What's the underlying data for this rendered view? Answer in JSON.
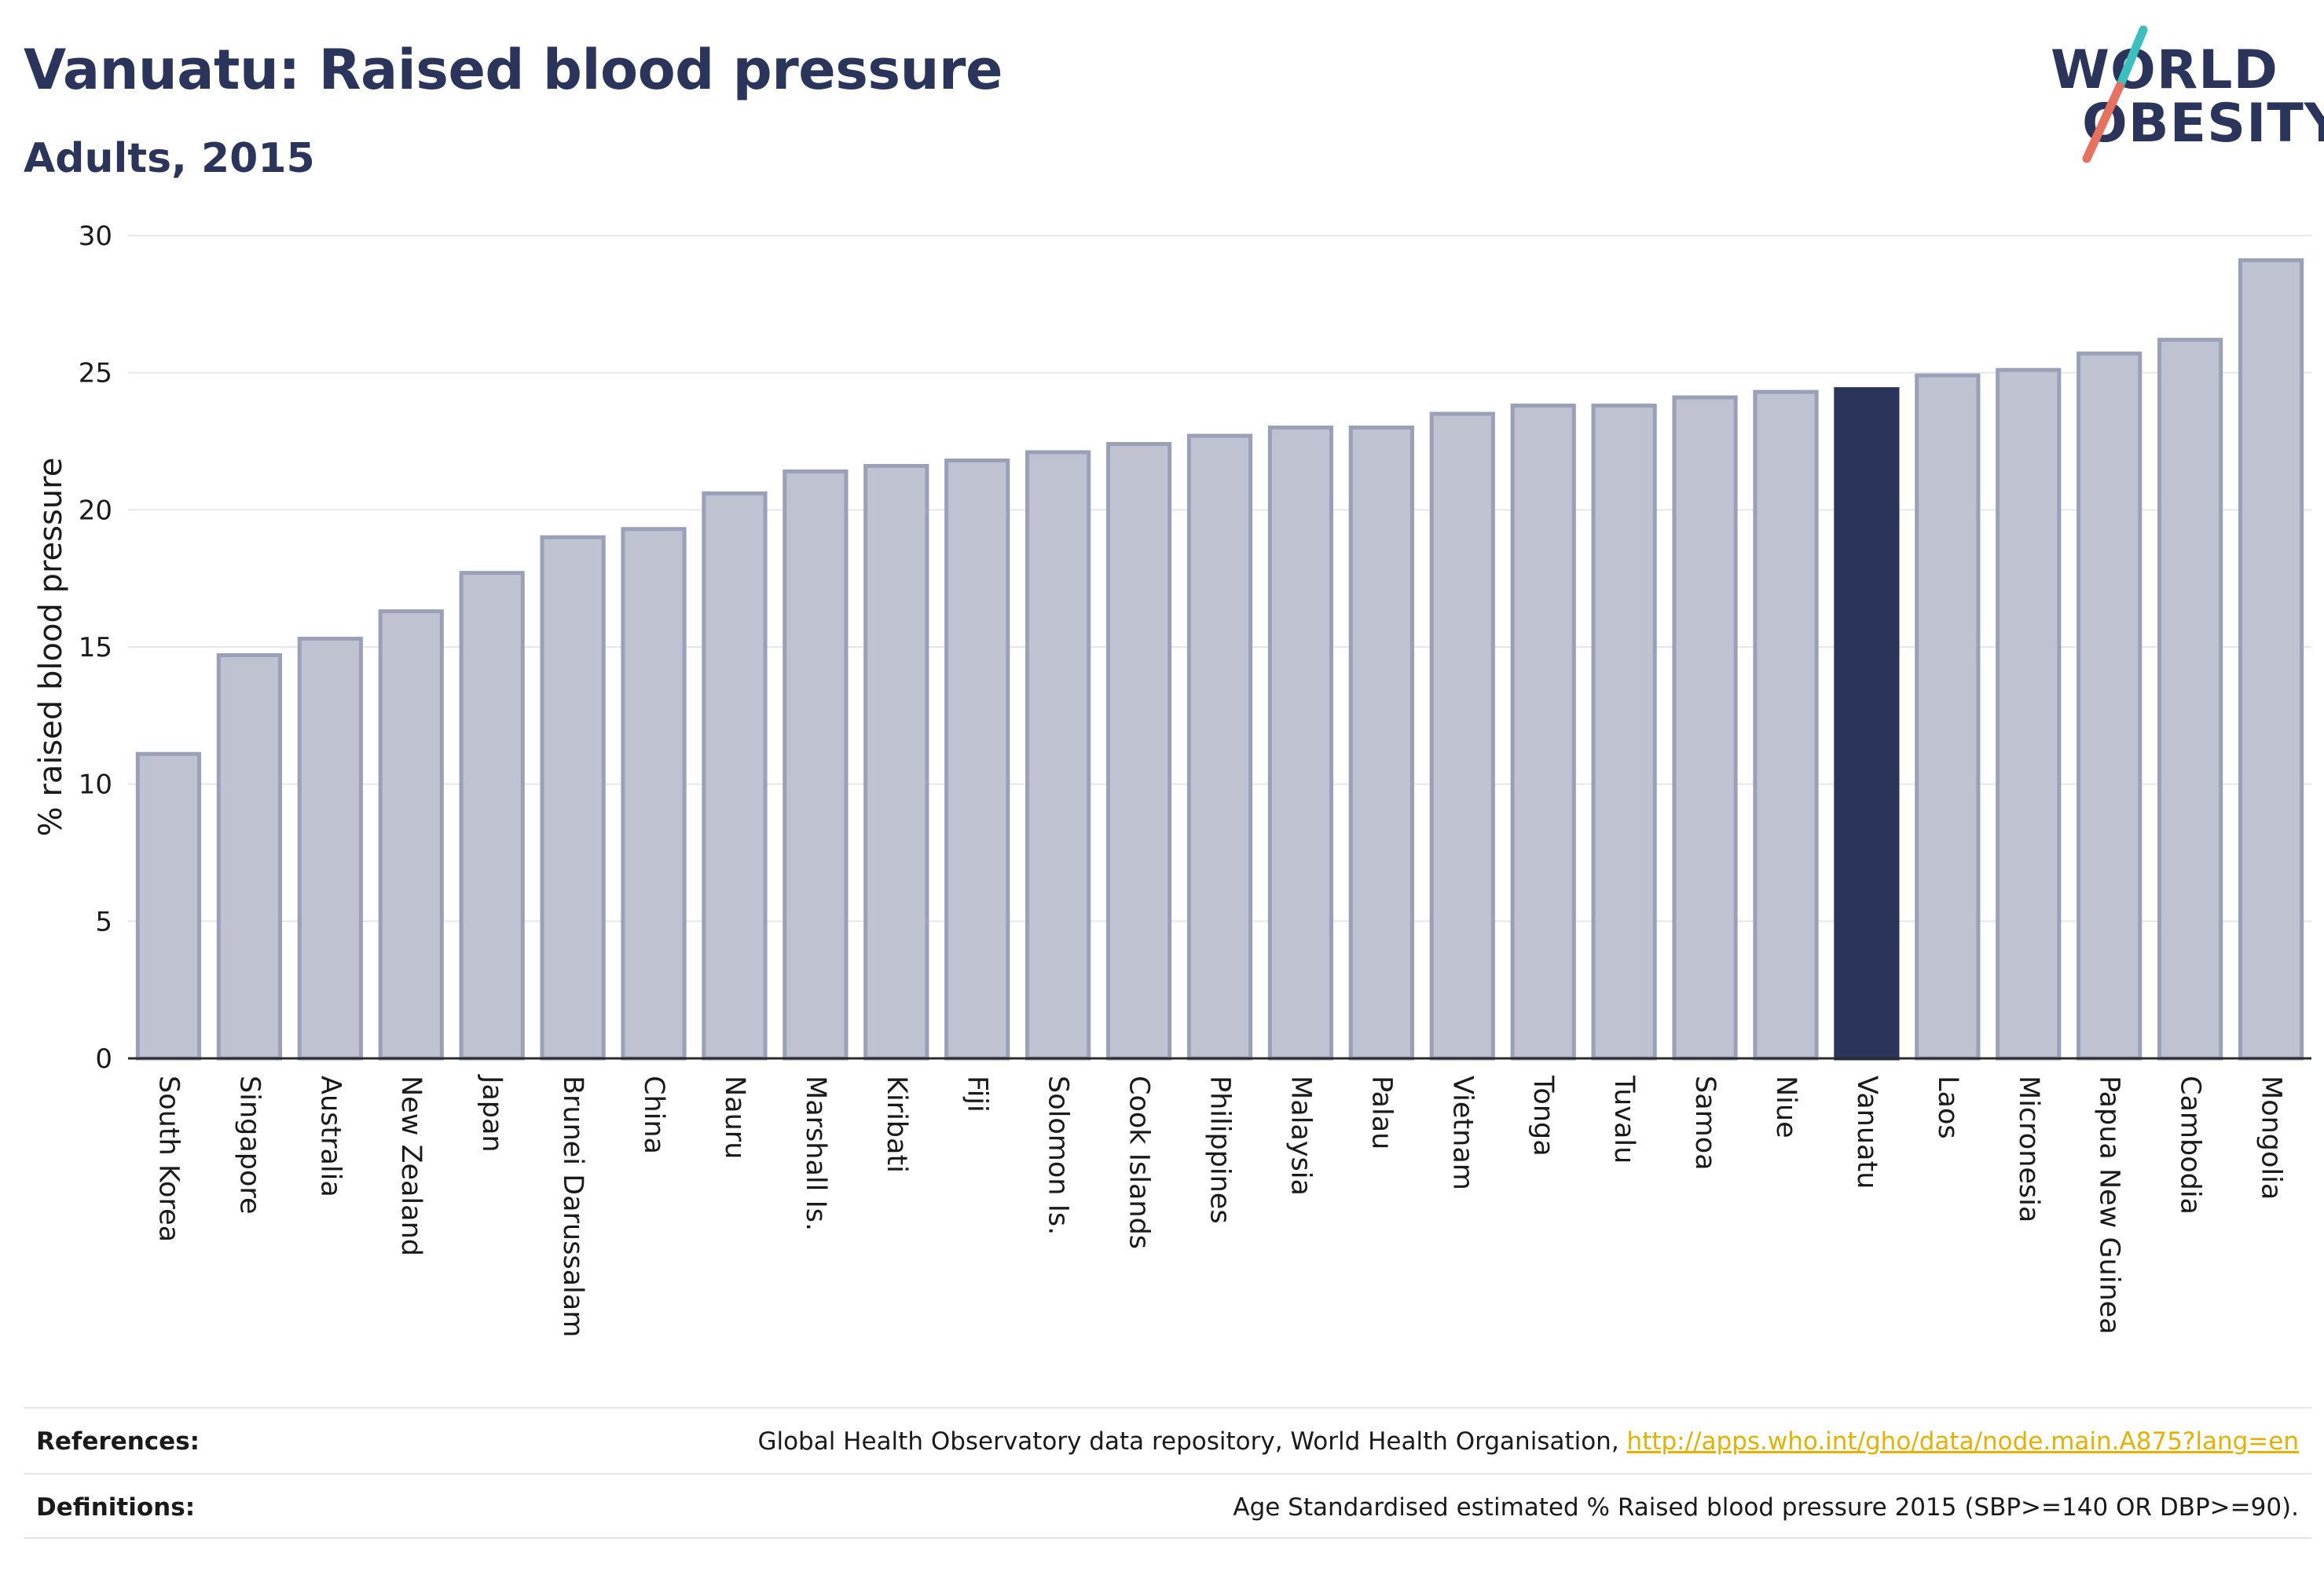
{
  "header": {
    "title": "Vanuatu: Raised blood pressure",
    "subtitle": "Adults, 2015"
  },
  "logo": {
    "line1": "WORLD",
    "line2": "OBESITY",
    "colors": {
      "text": "#2b355c",
      "slash_top": "#3bbfbf",
      "slash_bottom": "#e8705f"
    }
  },
  "chart_data": {
    "type": "bar",
    "title": "Vanuatu: Raised blood pressure",
    "subtitle": "Adults, 2015",
    "xlabel": "",
    "ylabel": "% raised blood pressure",
    "ylim": [
      0,
      30
    ],
    "yticks": [
      0,
      5,
      10,
      15,
      20,
      25,
      30
    ],
    "grid": true,
    "highlight": "Vanuatu",
    "colors": {
      "bar": "#bfc2d0",
      "bar_border": "#9aa0b8",
      "highlight": "#2b355c",
      "grid": "#e6e8ee",
      "axis": "#2b2b2b"
    },
    "categories": [
      "South Korea",
      "Singapore",
      "Australia",
      "New Zealand",
      "Japan",
      "Brunei Darussalam",
      "China",
      "Nauru",
      "Marshall Is.",
      "Kiribati",
      "Fiji",
      "Solomon Is.",
      "Cook Islands",
      "Philippines",
      "Malaysia",
      "Palau",
      "Vietnam",
      "Tonga",
      "Tuvalu",
      "Samoa",
      "Niue",
      "Vanuatu",
      "Laos",
      "Micronesia",
      "Papua New Guinea",
      "Cambodia",
      "Mongolia"
    ],
    "values": [
      11.1,
      14.7,
      15.3,
      16.3,
      17.7,
      19.0,
      19.3,
      20.6,
      21.4,
      21.6,
      21.8,
      22.1,
      22.4,
      22.7,
      23.0,
      23.0,
      23.5,
      23.8,
      23.8,
      24.1,
      24.3,
      24.4,
      24.9,
      25.1,
      25.7,
      26.2,
      29.1
    ]
  },
  "footer": {
    "references_label": "References:",
    "references_text": "Global Health Observatory data repository, World Health Organisation, ",
    "references_link": "http://apps.who.int/gho/data/node.main.A875?lang=en",
    "definitions_label": "Definitions:",
    "definitions_text": "Age Standardised estimated % Raised blood pressure 2015 (SBP>=140 OR DBP>=90)."
  }
}
